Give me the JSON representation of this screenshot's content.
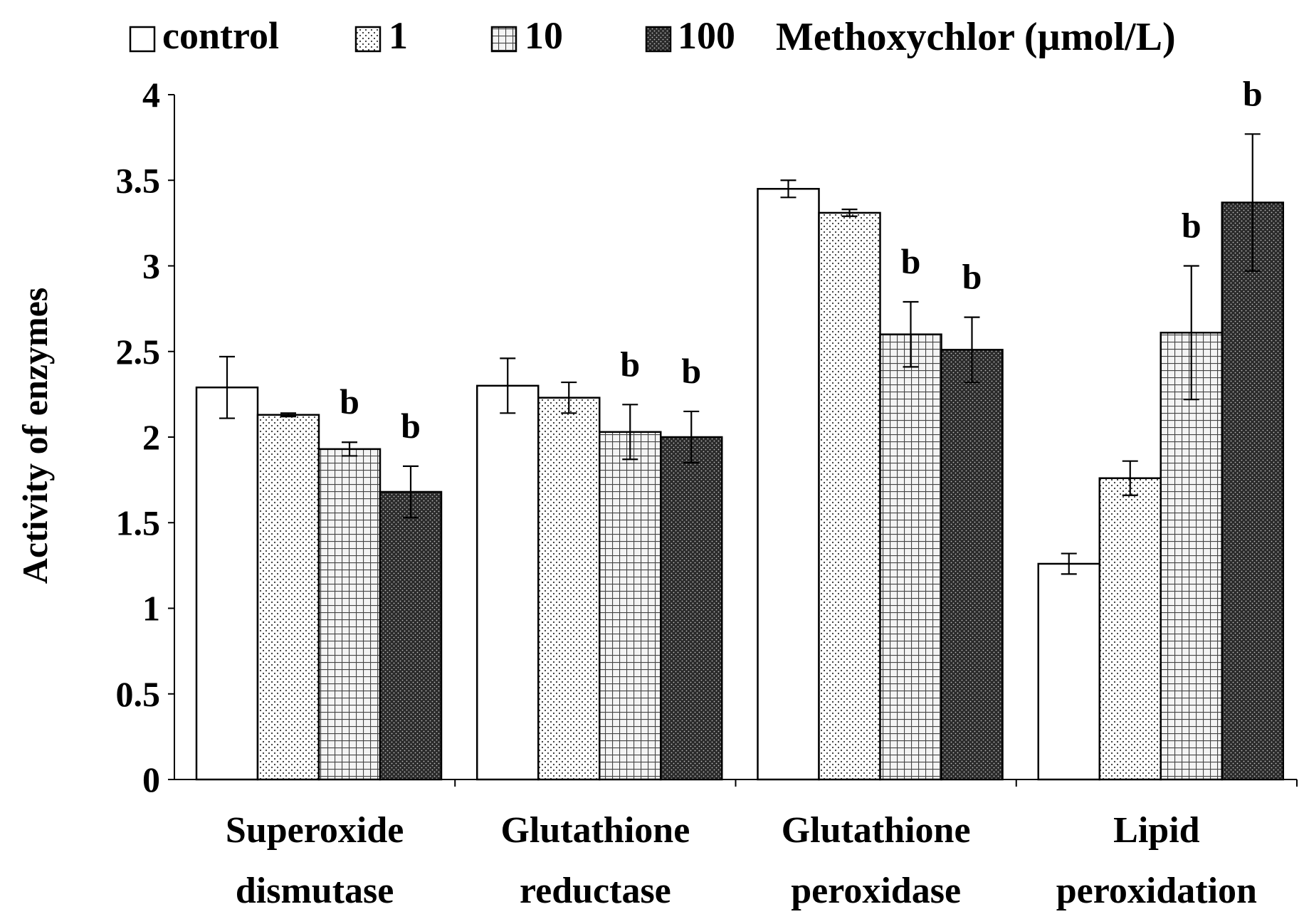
{
  "chart_data": {
    "type": "bar",
    "ylabel": "Activity of enzymes",
    "ylim": [
      0,
      4
    ],
    "yticks": [
      {
        "value": 0,
        "label": "0"
      },
      {
        "value": 0.5,
        "label": "0.5"
      },
      {
        "value": 1,
        "label": "1"
      },
      {
        "value": 1.5,
        "label": "1.5"
      },
      {
        "value": 2,
        "label": "2"
      },
      {
        "value": 2.5,
        "label": "2.5"
      },
      {
        "value": 3,
        "label": "3"
      },
      {
        "value": 3.5,
        "label": "3.5"
      },
      {
        "value": 4,
        "label": "4"
      }
    ],
    "categories": [
      {
        "line1": "Superoxide",
        "line2": "dismutase"
      },
      {
        "line1": "Glutathione",
        "line2": "reductase"
      },
      {
        "line1": "Glutathione",
        "line2": "peroxidase"
      },
      {
        "line1": "Lipid",
        "line2": "peroxidation"
      }
    ],
    "legend_title": "Methoxychlor (µmol/L)",
    "legend_position": "top",
    "series": [
      {
        "name": "control",
        "pattern": "white",
        "values": [
          2.29,
          2.3,
          3.45,
          1.26
        ],
        "errors": [
          0.18,
          0.16,
          0.05,
          0.06
        ],
        "marks": [
          "",
          "",
          "",
          ""
        ]
      },
      {
        "name": "1",
        "pattern": "dots",
        "values": [
          2.13,
          2.23,
          3.31,
          1.76
        ],
        "errors": [
          0.01,
          0.09,
          0.02,
          0.1
        ],
        "marks": [
          "",
          "",
          "",
          ""
        ]
      },
      {
        "name": "10",
        "pattern": "grid",
        "values": [
          1.93,
          2.03,
          2.6,
          2.61
        ],
        "errors": [
          0.04,
          0.16,
          0.19,
          0.39
        ],
        "marks": [
          "b",
          "b",
          "b",
          "b"
        ]
      },
      {
        "name": "100",
        "pattern": "dense",
        "values": [
          1.68,
          2.0,
          2.51,
          3.37
        ],
        "errors": [
          0.15,
          0.15,
          0.19,
          0.4
        ],
        "marks": [
          "b",
          "b",
          "b",
          "b"
        ]
      }
    ],
    "grid": false
  }
}
